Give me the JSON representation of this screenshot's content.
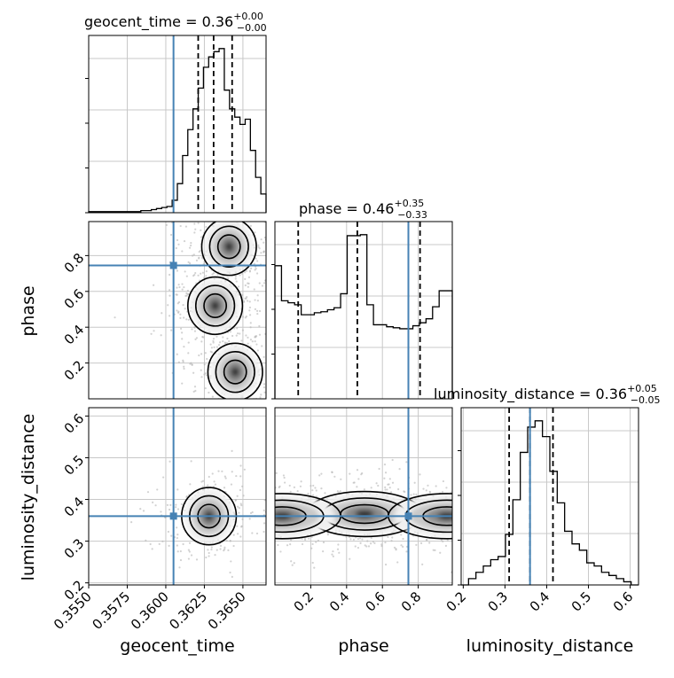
{
  "chart_data": {
    "type": "corner",
    "parameters": [
      "geocent_time",
      "phase",
      "luminosity_distance"
    ],
    "truths": {
      "geocent_time": 0.3605,
      "phase": 0.745,
      "luminosity_distance": 0.36
    },
    "colors": {
      "truth": "#4682b4",
      "hist": "#000000",
      "grid": "#c8c8c8",
      "points": "#b4b4b4"
    },
    "grid": true,
    "axes": {
      "geocent_time": {
        "label": "geocent_time",
        "range": [
          0.355,
          0.3665
        ],
        "ticks": [
          0.355,
          0.3575,
          0.36,
          0.3625,
          0.365
        ],
        "tick_labels": [
          "0.3550",
          "0.3575",
          "0.3600",
          "0.3625",
          "0.3650"
        ]
      },
      "phase": {
        "label": "phase",
        "range": [
          0.0,
          0.99
        ],
        "ticks": [
          0.2,
          0.4,
          0.6,
          0.8
        ],
        "tick_labels": [
          "0.2",
          "0.4",
          "0.6",
          "0.8"
        ]
      },
      "luminosity_distance": {
        "label": "luminosity_distance",
        "range": [
          0.195,
          0.62
        ],
        "ticks": [
          0.2,
          0.3,
          0.4,
          0.5,
          0.6
        ],
        "tick_labels": [
          "0.2",
          "0.3",
          "0.4",
          "0.5",
          "0.6"
        ]
      }
    },
    "marginals": [
      {
        "parameter": "geocent_time",
        "title_main": "geocent_time = 0.36",
        "title_sup": "+0.00",
        "title_sub": "−0.00",
        "quantiles": [
          0.3621,
          0.3631,
          0.3643
        ],
        "counts": [
          1,
          1,
          1,
          1,
          1,
          1,
          1,
          1,
          1,
          1,
          2,
          2,
          3,
          4,
          5,
          6,
          12,
          28,
          55,
          80,
          100,
          120,
          140,
          150,
          155,
          158,
          118,
          100,
          92,
          85,
          90,
          60,
          34,
          18
        ]
      },
      {
        "parameter": "phase",
        "title_main": "phase = 0.46",
        "title_sup": "+0.35",
        "title_sub": "−0.33",
        "quantiles": [
          0.13,
          0.46,
          0.81
        ],
        "counts": [
          133,
          98,
          96,
          94,
          84,
          84,
          86,
          87,
          89,
          91,
          105,
          163,
          163,
          164,
          94,
          74,
          74,
          72,
          71,
          70,
          70,
          73,
          76,
          80,
          92,
          108,
          108
        ]
      },
      {
        "parameter": "luminosity_distance",
        "title_main": "luminosity_distance = 0.36",
        "title_sup": "+0.05",
        "title_sub": "−0.05",
        "quantiles": [
          0.31,
          0.36,
          0.415
        ],
        "counts": [
          0,
          2,
          4,
          6,
          8,
          9,
          16,
          27,
          42,
          50,
          52,
          47,
          36,
          26,
          17,
          13,
          11,
          7,
          6,
          4,
          3,
          2,
          1,
          0
        ]
      }
    ],
    "joint": [
      {
        "x": "geocent_time",
        "y": "phase",
        "modes": [
          {
            "x": 0.3632,
            "y": 0.52
          },
          {
            "x": 0.3645,
            "y": 0.15
          },
          {
            "x": 0.3641,
            "y": 0.85
          }
        ]
      },
      {
        "x": "geocent_time",
        "y": "luminosity_distance",
        "modes": [
          {
            "x": 0.3628,
            "y": 0.36
          }
        ]
      },
      {
        "x": "phase",
        "y": "luminosity_distance",
        "modes": [
          {
            "x": 0.5,
            "y": 0.365
          },
          {
            "x": 0.04,
            "y": 0.36
          },
          {
            "x": 0.96,
            "y": 0.36
          }
        ]
      }
    ]
  }
}
